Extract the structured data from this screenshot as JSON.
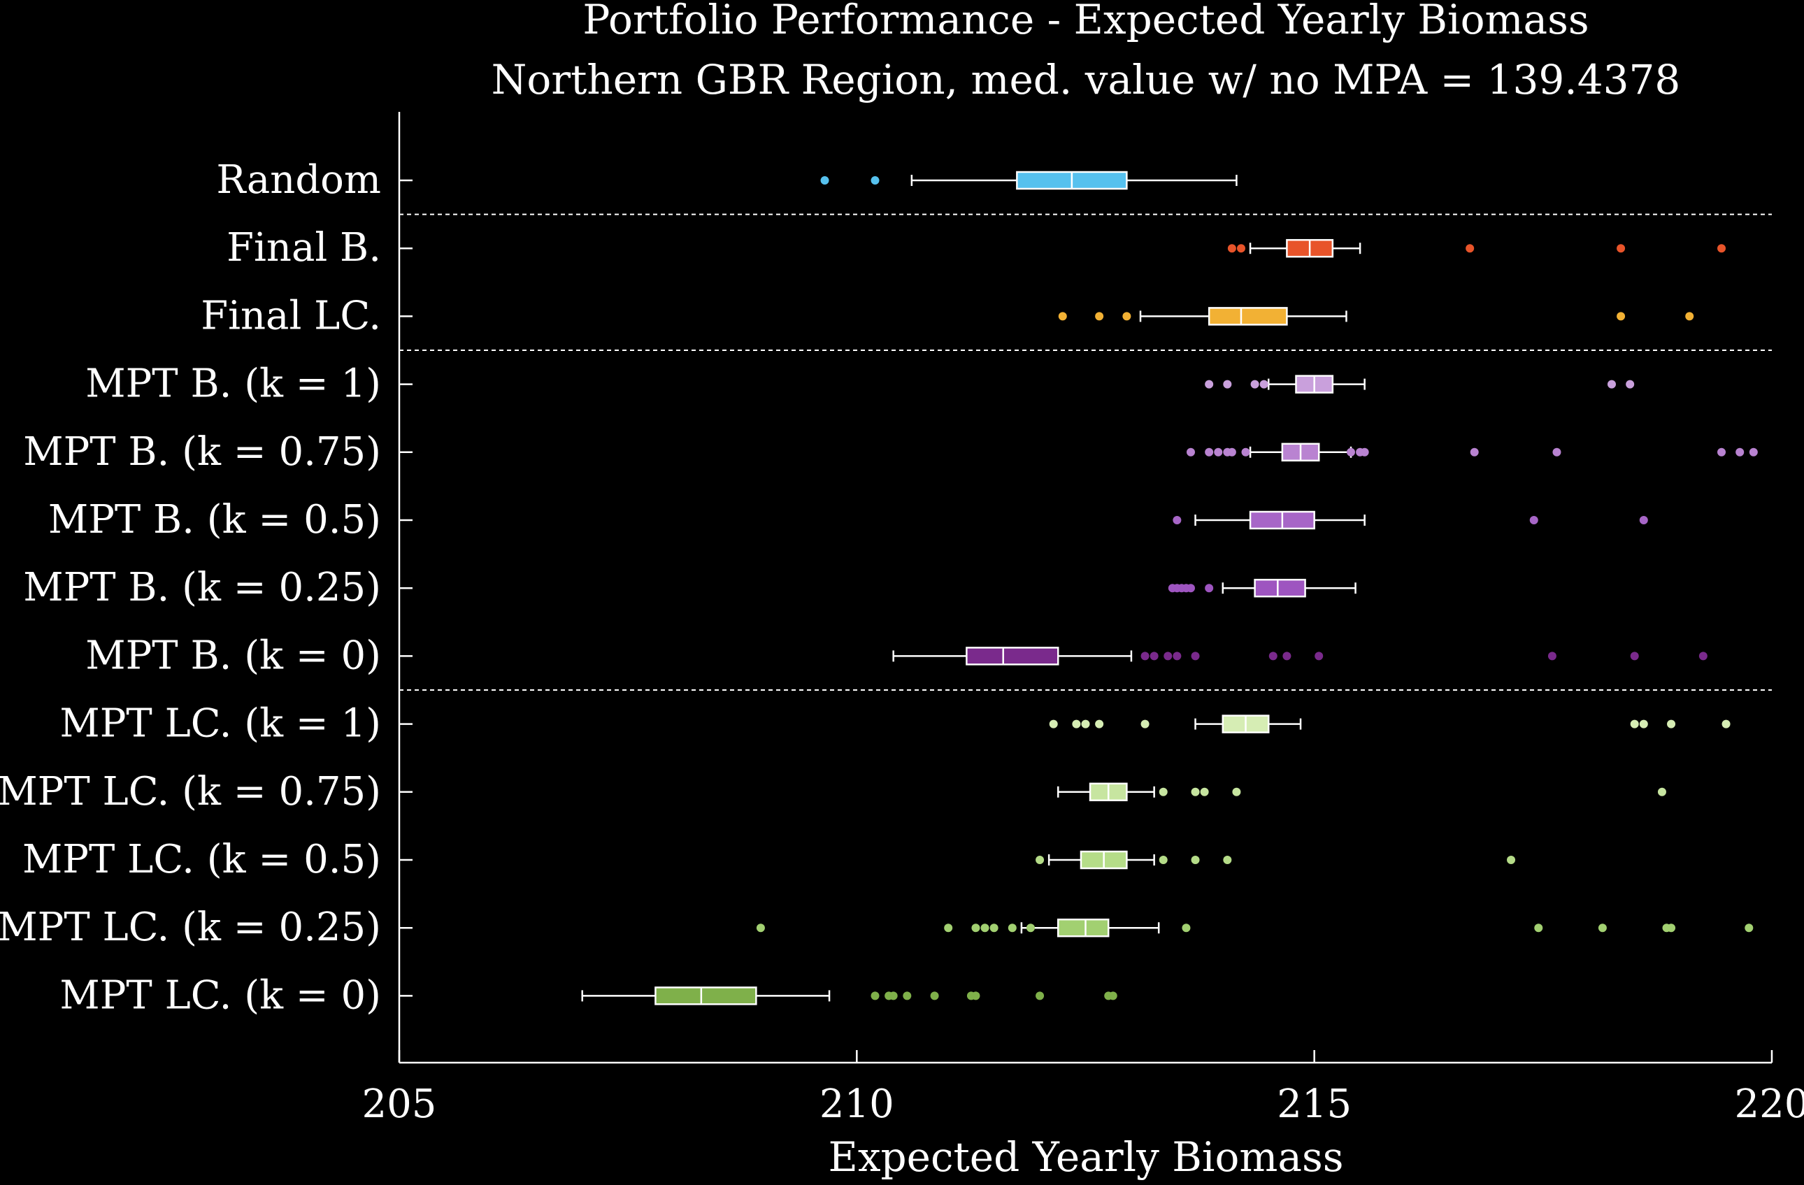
{
  "chart_data": {
    "type": "box",
    "title": "Portfolio Performance - Expected Yearly Biomass",
    "subtitle": "Northern GBR Region, med.  value w/ no MPA = 139.4378",
    "xlabel": "Expected Yearly Biomass",
    "ylabel": "",
    "xlim": [
      205,
      220
    ],
    "xticks": [
      "205",
      "210",
      "215",
      "220"
    ],
    "grid": false,
    "separators_after": [
      "Random",
      "Final LC.",
      "MPT B. (k = 0)"
    ],
    "series": [
      {
        "label": "Random",
        "color": "#56c1ee",
        "whisker_low": 210.6,
        "q1": 211.75,
        "median": 212.35,
        "q3": 212.95,
        "whisker_high": 214.15,
        "outliers": [
          209.65,
          210.2
        ]
      },
      {
        "label": "Final B.",
        "color": "#e8542a",
        "whisker_low": 214.3,
        "q1": 214.7,
        "median": 214.95,
        "q3": 215.2,
        "whisker_high": 215.5,
        "outliers": [
          214.1,
          214.2,
          216.7,
          218.35,
          219.45
        ]
      },
      {
        "label": "Final LC.",
        "color": "#f2b134",
        "whisker_low": 213.1,
        "q1": 213.85,
        "median": 214.2,
        "q3": 214.7,
        "whisker_high": 215.35,
        "outliers": [
          212.25,
          212.65,
          212.95,
          218.35,
          219.1
        ]
      },
      {
        "label": "MPT B. (k = 1)",
        "color": "#c9a0dc",
        "whisker_low": 214.5,
        "q1": 214.8,
        "median": 215.0,
        "q3": 215.2,
        "whisker_high": 215.55,
        "outliers": [
          213.85,
          214.05,
          214.35,
          214.45,
          218.25,
          218.45
        ]
      },
      {
        "label": "MPT B. (k = 0.75)",
        "color": "#b983d1",
        "whisker_low": 214.3,
        "q1": 214.65,
        "median": 214.85,
        "q3": 215.05,
        "whisker_high": 215.4,
        "outliers": [
          213.65,
          213.85,
          213.95,
          214.05,
          214.1,
          214.25,
          215.4,
          215.5,
          215.55,
          216.75,
          217.65,
          219.45,
          219.65,
          219.8
        ]
      },
      {
        "label": "MPT B. (k = 0.5)",
        "color": "#a766c7",
        "whisker_low": 213.7,
        "q1": 214.3,
        "median": 214.65,
        "q3": 215.0,
        "whisker_high": 215.55,
        "outliers": [
          213.5,
          217.4,
          218.6
        ]
      },
      {
        "label": "MPT B. (k = 0.25)",
        "color": "#9e55c0",
        "whisker_low": 214.0,
        "q1": 214.35,
        "median": 214.6,
        "q3": 214.9,
        "whisker_high": 215.45,
        "outliers": [
          213.45,
          213.5,
          213.55,
          213.6,
          213.65,
          213.85
        ]
      },
      {
        "label": "MPT B. (k = 0)",
        "color": "#7a2a8c",
        "whisker_low": 210.4,
        "q1": 211.2,
        "median": 211.6,
        "q3": 212.2,
        "whisker_high": 213.0,
        "outliers": [
          213.15,
          213.25,
          213.4,
          213.5,
          213.7,
          214.55,
          214.7,
          215.05,
          217.6,
          218.5,
          219.25
        ]
      },
      {
        "label": "MPT LC. (k = 1)",
        "color": "#d6edb4",
        "whisker_low": 213.7,
        "q1": 214.0,
        "median": 214.25,
        "q3": 214.5,
        "whisker_high": 214.85,
        "outliers": [
          212.15,
          212.4,
          212.5,
          212.65,
          213.15,
          218.5,
          218.6,
          218.9,
          219.5
        ]
      },
      {
        "label": "MPT LC. (k = 0.75)",
        "color": "#c7e5a0",
        "whisker_low": 212.2,
        "q1": 212.55,
        "median": 212.75,
        "q3": 212.95,
        "whisker_high": 213.25,
        "outliers": [
          213.35,
          213.7,
          213.8,
          214.15,
          218.8
        ]
      },
      {
        "label": "MPT LC. (k = 0.5)",
        "color": "#b5dc88",
        "whisker_low": 212.1,
        "q1": 212.45,
        "median": 212.7,
        "q3": 212.95,
        "whisker_high": 213.25,
        "outliers": [
          212.0,
          213.35,
          213.7,
          214.05,
          217.15
        ]
      },
      {
        "label": "MPT LC. (k = 0.25)",
        "color": "#a2d071",
        "whisker_low": 211.8,
        "q1": 212.2,
        "median": 212.5,
        "q3": 212.75,
        "whisker_high": 213.3,
        "outliers": [
          208.95,
          211.0,
          211.3,
          211.4,
          211.5,
          211.7,
          211.9,
          213.6,
          217.45,
          218.15,
          218.85,
          218.9,
          219.75
        ]
      },
      {
        "label": "MPT LC. (k = 0)",
        "color": "#7fb04a",
        "whisker_low": 207.0,
        "q1": 207.8,
        "median": 208.3,
        "q3": 208.9,
        "whisker_high": 209.7,
        "outliers": [
          210.2,
          210.35,
          210.4,
          210.55,
          210.85,
          211.25,
          211.3,
          212.0,
          212.75,
          212.8
        ]
      }
    ]
  }
}
